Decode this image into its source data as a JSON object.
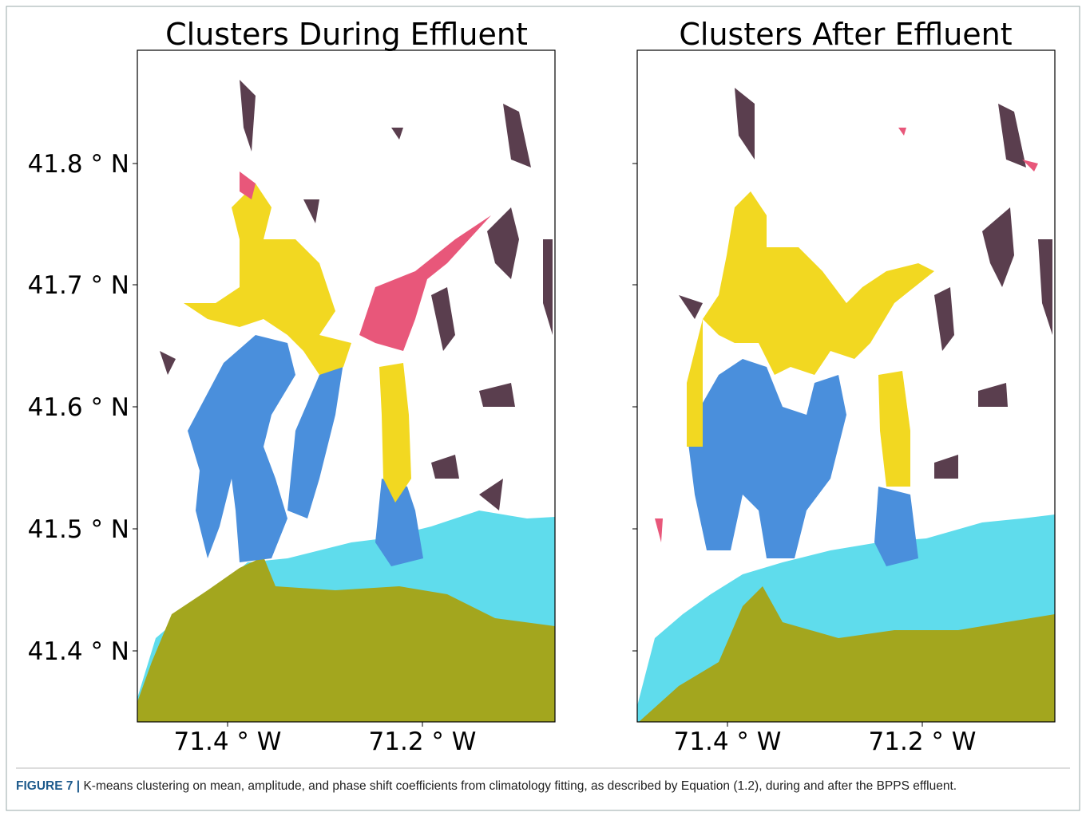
{
  "figure": {
    "panels": [
      {
        "title": "Clusters During Effluent",
        "yticks": [
          "41.8 ° N",
          "41.7 ° N",
          "41.6 ° N",
          "41.5 ° N",
          "41.4 ° N"
        ],
        "xticks": [
          "71.4 ° W",
          "71.2 ° W"
        ]
      },
      {
        "title": "Clusters After Effluent",
        "xticks": [
          "71.4 ° W",
          "71.2 ° W"
        ]
      }
    ],
    "caption": {
      "label": "FIGURE 7 |",
      "text": "K-means clustering on mean, amplitude, and phase shift coefficients from climatology fitting, as described by Equation (1.2), during and after the BPPS effluent."
    }
  }
}
